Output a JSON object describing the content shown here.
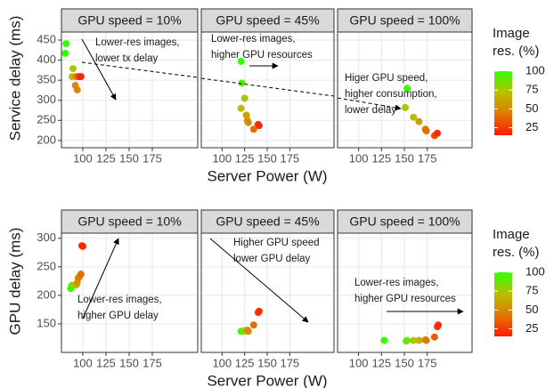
{
  "chart_data": [
    {
      "type": "scatter",
      "ylabel": "Service delay (ms)",
      "xlabel": "Server Power (W)",
      "xlim": [
        77,
        224
      ],
      "xticks": [
        100,
        125,
        150,
        175
      ],
      "ylim": [
        182,
        470
      ],
      "yticks": [
        200,
        250,
        300,
        350,
        400,
        450
      ],
      "grid": true,
      "legend_title": [
        "Image",
        "res. (%)"
      ],
      "colorbar": {
        "lim": [
          15,
          100
        ],
        "ticks": [
          25,
          50,
          75,
          100
        ],
        "colors": [
          "#ff1a00",
          "#e07800",
          "#b8c000",
          "#33ff00"
        ]
      },
      "facets": [
        {
          "title": "GPU speed = 10%",
          "annotation": [
            "Lower-res images,",
            "lower tx delay"
          ],
          "x": [
            82,
            81,
            89.5,
            88.5,
            93,
            92,
            94,
            96,
            98
          ],
          "y": [
            441,
            417,
            379,
            359,
            359,
            337,
            326,
            359,
            359
          ],
          "color_values": [
            100,
            100,
            75,
            70,
            45,
            50,
            50,
            25,
            20
          ]
        },
        {
          "title": "GPU speed = 45%",
          "annotation": [
            "Lower-res images,",
            "higher GPU resources"
          ],
          "x": [
            121,
            122,
            125,
            121,
            127,
            128,
            129,
            135,
            140,
            141
          ],
          "y": [
            397,
            343,
            305,
            280,
            263,
            250,
            245,
            228,
            240,
            237
          ],
          "color_values": [
            100,
            95,
            75,
            70,
            60,
            55,
            50,
            40,
            25,
            20
          ]
        },
        {
          "title": "GPU speed = 100%",
          "annotation": [
            "Higer GPU speed,",
            "higher consumption,",
            "lower delay"
          ],
          "x": [
            153,
            151,
            160,
            166,
            173,
            174,
            183,
            186
          ],
          "y": [
            330,
            282,
            258,
            247,
            228,
            224,
            212,
            218
          ],
          "color_values": [
            100,
            75,
            70,
            60,
            45,
            40,
            30,
            20
          ]
        }
      ]
    },
    {
      "type": "scatter",
      "ylabel": "GPU delay (ms)",
      "xlabel": "Server Power (W)",
      "xlim": [
        77,
        224
      ],
      "xticks": [
        100,
        125,
        150,
        175
      ],
      "ylim": [
        100,
        309
      ],
      "yticks": [
        150,
        200,
        250,
        300
      ],
      "grid": true,
      "legend_title": [
        "Image",
        "res. (%)"
      ],
      "colorbar": {
        "lim": [
          15,
          100
        ],
        "ticks": [
          25,
          50,
          75,
          100
        ],
        "colors": [
          "#ff1a00",
          "#e07800",
          "#b8c000",
          "#33ff00"
        ]
      },
      "facets": [
        {
          "title": "GPU speed = 10%",
          "annotation": [
            "Lower-res images,",
            "higher GPU delay"
          ],
          "x": [
            87,
            88,
            91,
            93,
            94,
            95,
            96,
            98,
            99,
            100
          ],
          "y": [
            212,
            217,
            218,
            218,
            222,
            230,
            232,
            237,
            287,
            286
          ],
          "color_values": [
            100,
            95,
            75,
            70,
            55,
            50,
            45,
            40,
            25,
            20
          ]
        },
        {
          "title": "GPU speed = 45%",
          "annotation": [
            "Higher GPU speed",
            "lower GPU delay"
          ],
          "x": [
            121,
            123,
            125,
            128,
            129,
            135,
            140,
            141
          ],
          "y": [
            137,
            137,
            138,
            139,
            137,
            148,
            170,
            172
          ],
          "color_values": [
            100,
            90,
            75,
            60,
            50,
            40,
            25,
            20
          ]
        },
        {
          "title": "GPU speed = 100%",
          "annotation": [
            "Lower-res images,",
            "higher GPU resources"
          ],
          "x": [
            128,
            152,
            153,
            160,
            166,
            173,
            174,
            183,
            186,
            187
          ],
          "y": [
            121,
            120,
            121,
            121,
            121,
            122,
            121,
            127,
            145,
            148
          ],
          "color_values": [
            100,
            95,
            90,
            75,
            65,
            50,
            45,
            35,
            25,
            20
          ]
        }
      ]
    }
  ]
}
